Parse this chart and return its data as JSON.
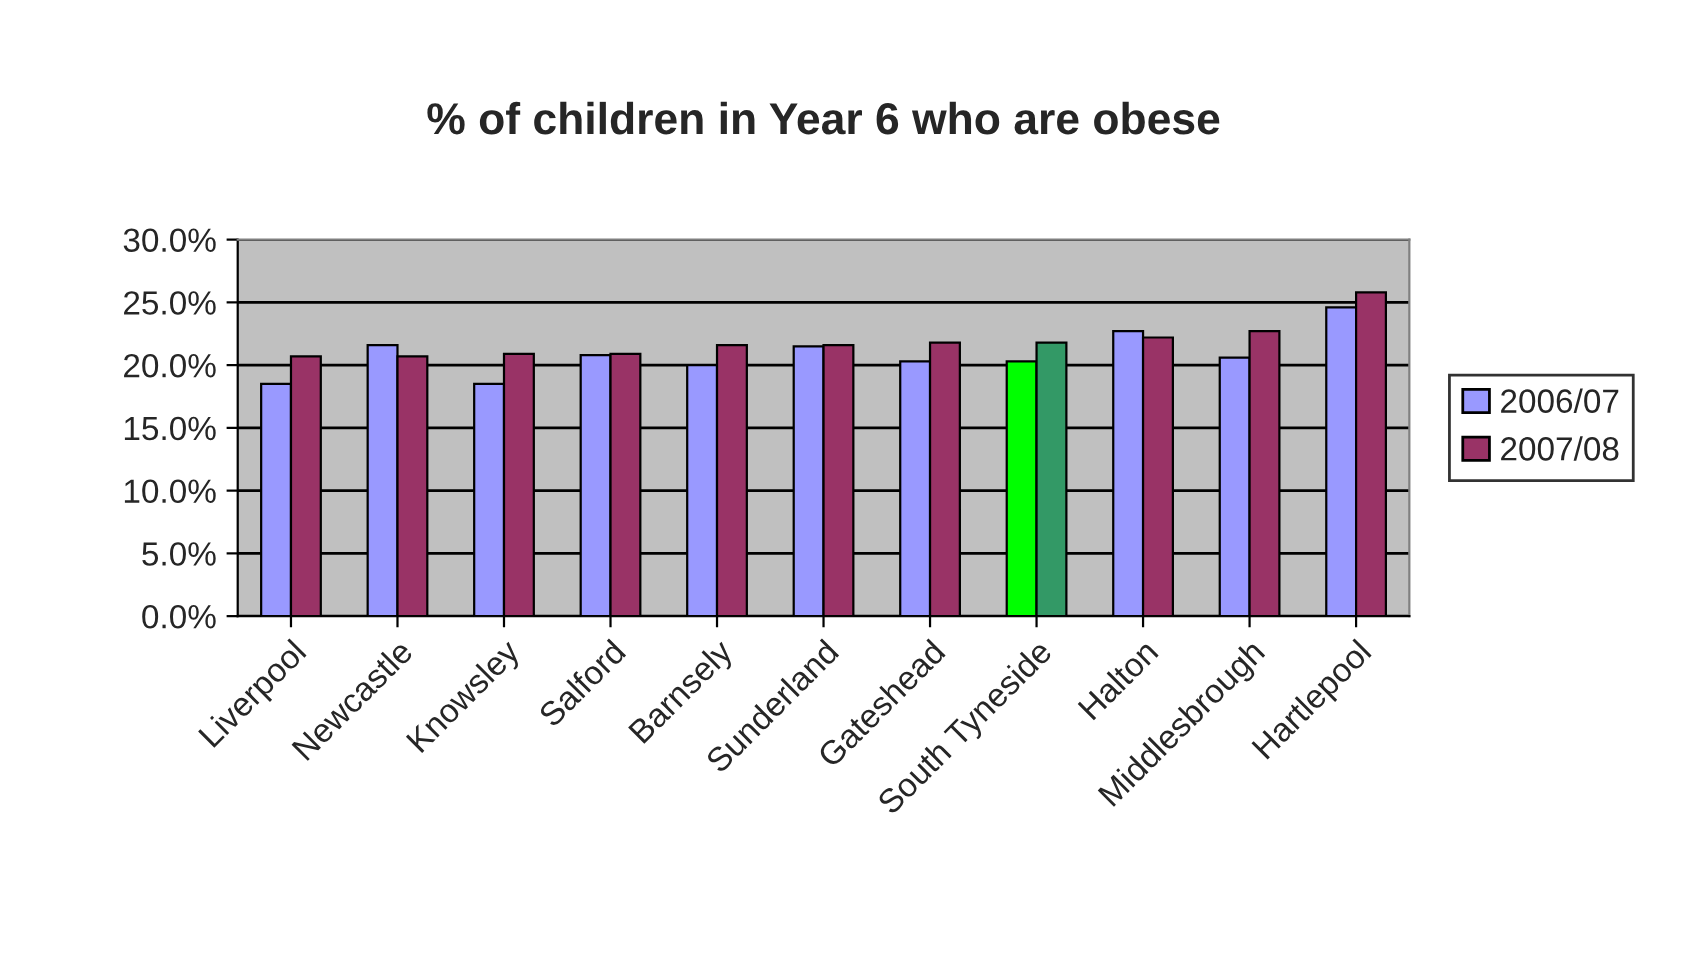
{
  "chart_data": {
    "type": "bar",
    "title": "% of children in Year 6 who are obese",
    "categories": [
      "Liverpool",
      "Newcastle",
      "Knowsley",
      "Salford",
      "Barnsely",
      "Sunderland",
      "Gateshead",
      "South Tyneside",
      "Halton",
      "Middlesbrough",
      "Hartlepool"
    ],
    "series": [
      {
        "name": "2006/07",
        "color": "#9999ff",
        "colors": [
          "#9999ff",
          "#9999ff",
          "#9999ff",
          "#9999ff",
          "#9999ff",
          "#9999ff",
          "#9999ff",
          "#00ff00",
          "#9999ff",
          "#9999ff",
          "#9999ff"
        ],
        "values": [
          18.5,
          21.6,
          18.5,
          20.8,
          20.0,
          21.5,
          20.3,
          20.3,
          22.7,
          20.6,
          24.6
        ]
      },
      {
        "name": "2007/08",
        "color": "#993366",
        "colors": [
          "#993366",
          "#993366",
          "#993366",
          "#993366",
          "#993366",
          "#993366",
          "#993366",
          "#339966",
          "#993366",
          "#993366",
          "#993366"
        ],
        "values": [
          20.7,
          20.7,
          20.9,
          20.9,
          21.6,
          21.6,
          21.8,
          21.8,
          22.2,
          22.7,
          25.8
        ]
      }
    ],
    "ylim": [
      0,
      30
    ],
    "yticks": [
      {
        "value": 0,
        "label": "0.0%"
      },
      {
        "value": 5,
        "label": "5.0%"
      },
      {
        "value": 10,
        "label": "10.0%"
      },
      {
        "value": 15,
        "label": "15.0%"
      },
      {
        "value": 20,
        "label": "20.0%"
      },
      {
        "value": 25,
        "label": "25.0%"
      },
      {
        "value": 30,
        "label": "30.0%"
      }
    ],
    "grid": "y",
    "legend": "right"
  }
}
